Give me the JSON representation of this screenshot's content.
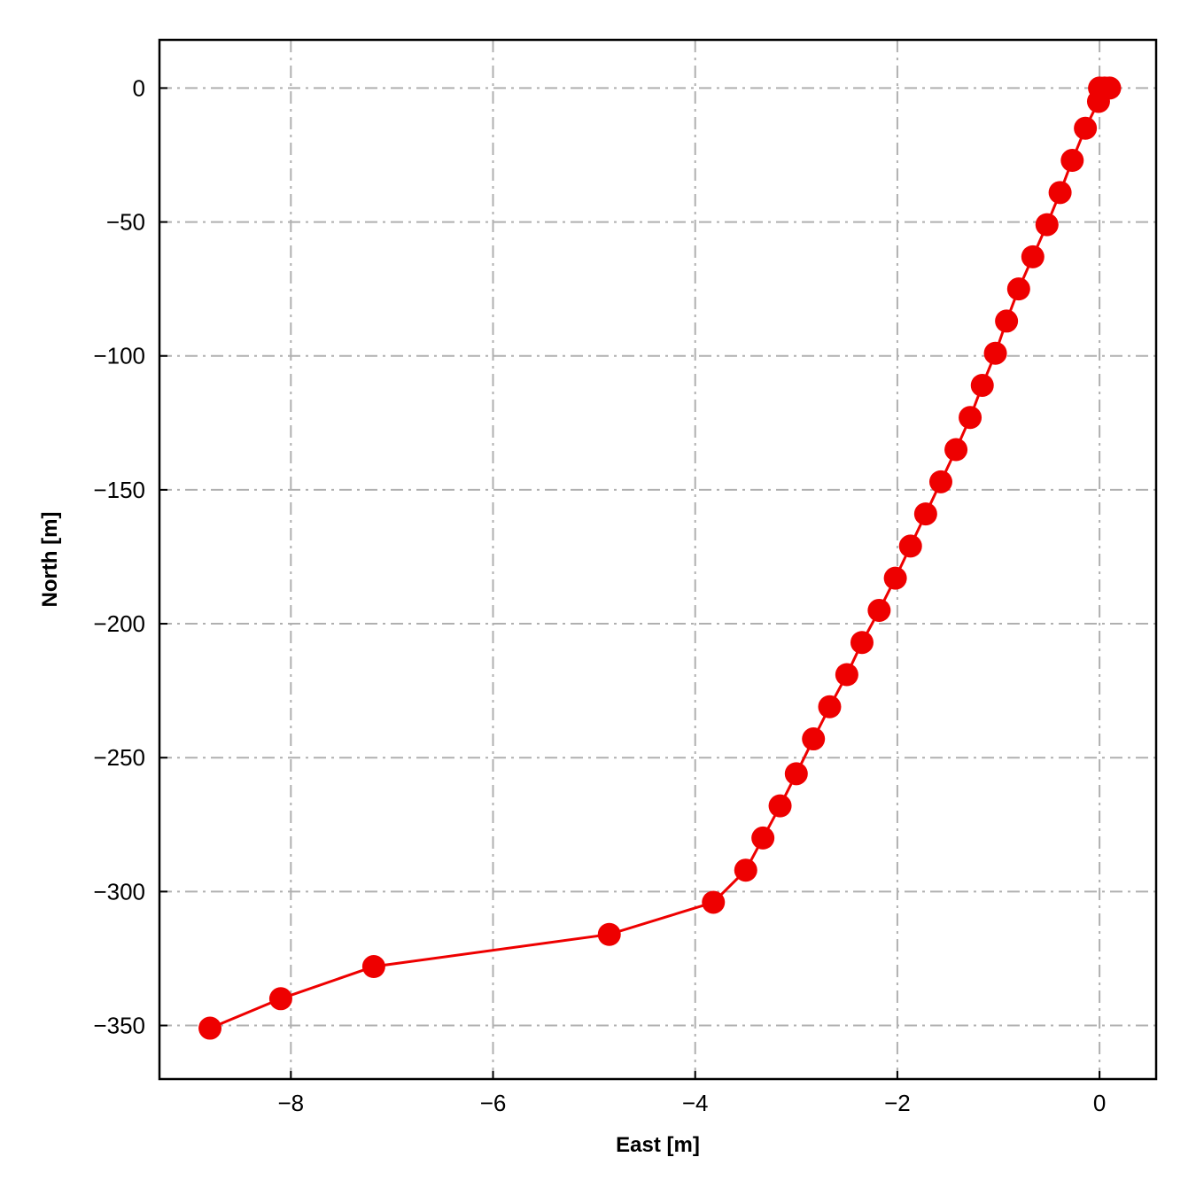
{
  "chart_data": {
    "type": "line",
    "title": "",
    "xlabel": "East [m]",
    "ylabel": "North [m]",
    "xlim": [
      -9.3,
      0.56
    ],
    "ylim": [
      -370,
      18
    ],
    "xticks": [
      -8,
      -6,
      -4,
      -2,
      0
    ],
    "yticks": [
      0,
      -50,
      -100,
      -150,
      -200,
      -250,
      -300,
      -350
    ],
    "grid": true,
    "legend": "none",
    "color": "#ee0000",
    "marker": "circle",
    "series": [
      {
        "x": [
          0.1,
          0.05,
          0.0,
          -0.01,
          -0.14,
          -0.27,
          -0.39,
          -0.52,
          -0.66,
          -0.8,
          -0.92,
          -1.03,
          -1.16,
          -1.28,
          -1.42,
          -1.57,
          -1.72,
          -1.87,
          -2.02,
          -2.18,
          -2.35,
          -2.5,
          -2.67,
          -2.83,
          -3.0,
          -3.16,
          -3.33,
          -3.5,
          -3.82,
          -4.85,
          -7.18,
          -8.1,
          -8.8
        ],
        "y": [
          0,
          0,
          0,
          -5,
          -15,
          -27,
          -39,
          -51,
          -63,
          -75,
          -87,
          -99,
          -111,
          -123,
          -135,
          -147,
          -159,
          -171,
          -183,
          -195,
          -207,
          -219,
          -231,
          -243,
          -256,
          -268,
          -280,
          -292,
          -304,
          -316,
          -328,
          -340,
          -351
        ]
      }
    ]
  }
}
